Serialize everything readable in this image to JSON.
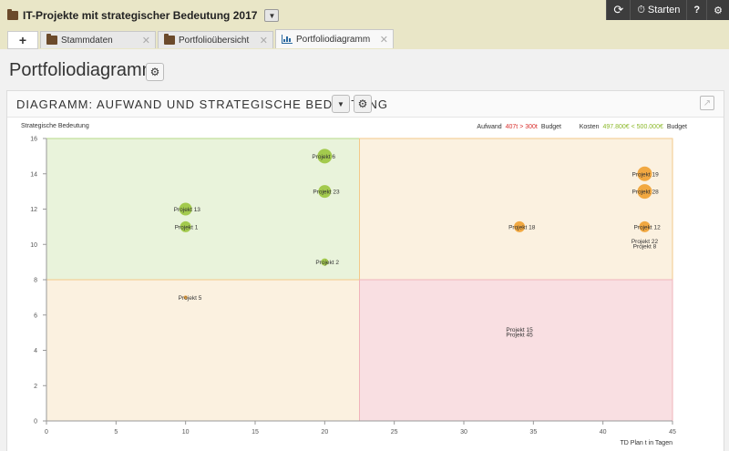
{
  "app": {
    "title": "IT-Projekte mit strategischer Bedeutung 2017",
    "start_label": "Starten",
    "help_label": "?"
  },
  "tabs": [
    {
      "label": "Stammdaten",
      "icon": "folder-icon",
      "active": false
    },
    {
      "label": "Portfolioübersicht",
      "icon": "folder-icon",
      "active": false
    },
    {
      "label": "Portfoliodiagramm",
      "icon": "chart-icon",
      "active": true
    }
  ],
  "page": {
    "title": "Portfoliodiagramm"
  },
  "panel": {
    "title": "DIAGRAMM: AUFWAND UND STRATEGISCHE BEDEUTUNG"
  },
  "legend": {
    "aufwand_label": "Aufwand",
    "aufwand_value": "407t > 300t",
    "aufwand_suffix": "Budget",
    "kosten_label": "Kosten",
    "kosten_value": "497.800€ < 500.000€",
    "kosten_suffix": "Budget"
  },
  "colors": {
    "green": "#9bc53d",
    "orange": "#f0a030",
    "red_text": "#d9302e",
    "green_text": "#8bb82a"
  },
  "chart_data": {
    "type": "scatter",
    "xlabel": "TD Plan t in Tagen",
    "ylabel": "Strategische Bedeutung",
    "xlim": [
      0,
      45
    ],
    "ylim": [
      0,
      16
    ],
    "x_ticks": [
      0,
      5,
      10,
      15,
      20,
      25,
      30,
      35,
      40,
      45
    ],
    "y_ticks": [
      0,
      2,
      4,
      6,
      8,
      10,
      12,
      14,
      16
    ],
    "quadrant_split": {
      "x": 22.5,
      "y": 8
    },
    "points": [
      {
        "label": "Projekt 6",
        "x": 20,
        "y": 15,
        "size": 8,
        "color": "green"
      },
      {
        "label": "Projekt 23",
        "x": 20,
        "y": 13,
        "size": 7,
        "color": "green"
      },
      {
        "label": "Projekt 13",
        "x": 10,
        "y": 12,
        "size": 7,
        "color": "green"
      },
      {
        "label": "Projekt 1",
        "x": 10,
        "y": 11,
        "size": 6,
        "color": "green"
      },
      {
        "label": "Projekt 2",
        "x": 20,
        "y": 9,
        "size": 4,
        "color": "green"
      },
      {
        "label": "Projekt 19",
        "x": 43,
        "y": 14,
        "size": 8,
        "color": "orange"
      },
      {
        "label": "Projekt 28",
        "x": 43,
        "y": 13,
        "size": 8,
        "color": "orange"
      },
      {
        "label": "Projekt 18",
        "x": 34,
        "y": 11,
        "size": 6,
        "color": "orange"
      },
      {
        "label": "Projekt 12",
        "x": 43,
        "y": 11,
        "size": 6,
        "color": "orange"
      },
      {
        "label": "Projekt 22",
        "x": 43,
        "y": 10.2,
        "size": 0,
        "color": "orange"
      },
      {
        "label": "Projekt 8",
        "x": 43,
        "y": 9.9,
        "size": 0,
        "color": "orange"
      },
      {
        "label": "Projekt 5",
        "x": 10,
        "y": 7,
        "size": 2,
        "color": "orange"
      },
      {
        "label": "Projekt 15",
        "x": 34,
        "y": 5.2,
        "size": 0,
        "color": "red"
      },
      {
        "label": "Projekt 45",
        "x": 34,
        "y": 4.9,
        "size": 0,
        "color": "red"
      }
    ]
  }
}
